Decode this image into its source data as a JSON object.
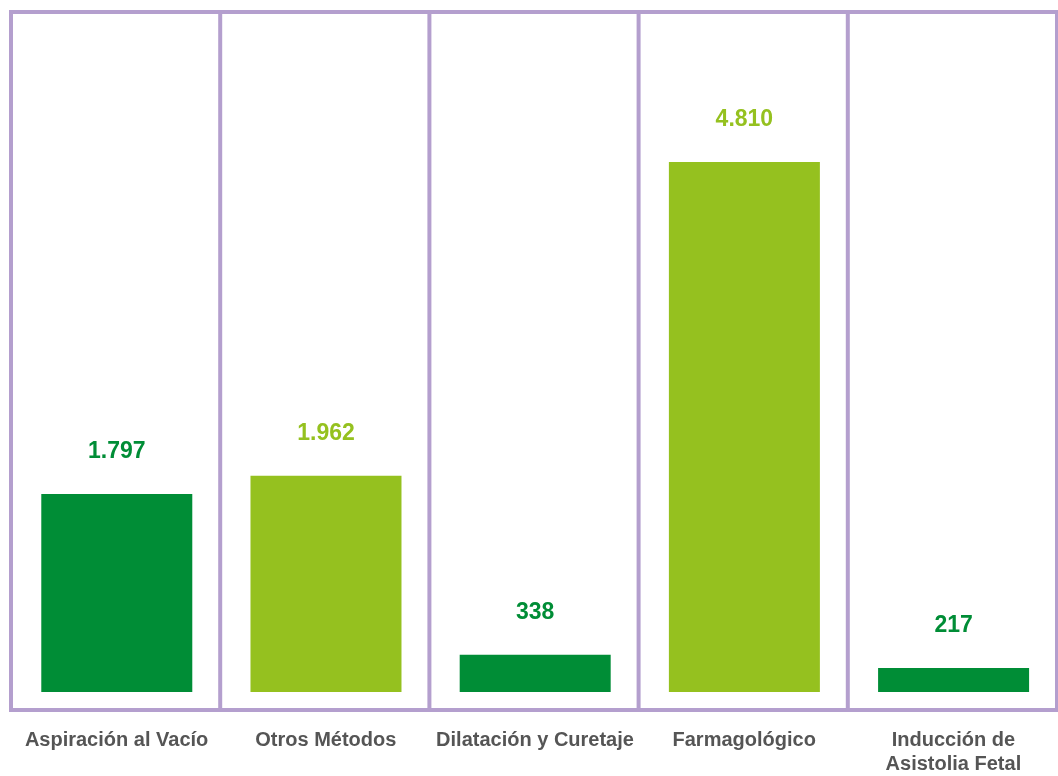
{
  "chart_data": {
    "type": "bar",
    "categories": [
      "Aspiración al Vacío",
      "Otros Métodos",
      "Dilatación y Curetaje",
      "Farmagológico",
      "Inducción de Asistolia Fetal"
    ],
    "values": [
      1797,
      1962,
      338,
      4810,
      217
    ],
    "value_labels": [
      "1.797",
      "1.962",
      "338",
      "4.810",
      "217"
    ],
    "colors": [
      "#008d36",
      "#95c11f",
      "#008d36",
      "#95c11f",
      "#008d36"
    ],
    "grid": false
  }
}
